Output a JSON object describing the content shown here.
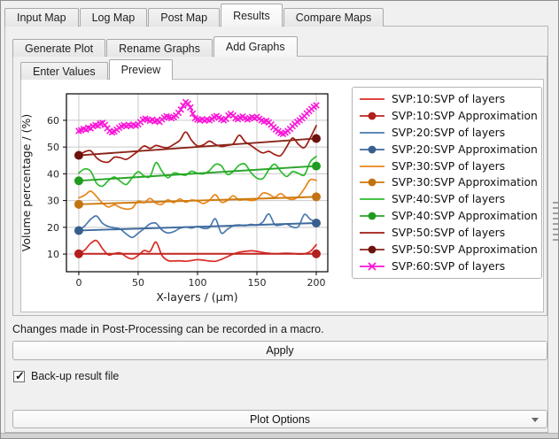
{
  "tabs_main": {
    "items": [
      "Input Map",
      "Log Map",
      "Post Map",
      "Results",
      "Compare Maps"
    ],
    "active": "Results"
  },
  "tabs_results": {
    "items": [
      "Generate Plot",
      "Rename Graphs",
      "Add Graphs"
    ],
    "active": "Add Graphs"
  },
  "tabs_addgraphs": {
    "items": [
      "Enter Values",
      "Preview"
    ],
    "active": "Preview"
  },
  "footer": {
    "note": "Changes made in Post-Processing can be recorded in a macro.",
    "apply_label": "Apply",
    "checkbox_label": "Back-up result file",
    "checkbox_checked": true,
    "plot_options_label": "Plot Options"
  },
  "chart_data": {
    "type": "line",
    "title": "",
    "xlabel": "X-layers / (µm)",
    "ylabel": "Volume percentage / (%)",
    "xlim": [
      -10.4,
      209.7
    ],
    "ylim": [
      3.4,
      69.9
    ],
    "xticks": [
      0,
      50,
      100,
      150,
      200
    ],
    "yticks": [
      10,
      20,
      30,
      40,
      50,
      60
    ],
    "grid": true,
    "grid_color": "#c9c9c9",
    "legend_position": "right",
    "series": [
      {
        "name": "SVP:10:SVP of layers",
        "color": "#dc2a25",
        "kind": "wavy",
        "x_start": 0,
        "x_step": 5,
        "values": [
          10.2,
          11.5,
          14.0,
          15.0,
          12.0,
          9.7,
          10.2,
          10.4,
          9.0,
          8.2,
          9.5,
          11.3,
          11.0,
          14.5,
          9.5,
          7.6,
          7.4,
          7.5,
          7.3,
          7.6,
          7.9,
          7.7,
          7.4,
          7.3,
          8.0,
          9.0,
          10.0,
          10.7,
          11.0,
          11.2,
          11.0,
          10.6,
          10.3,
          10.1,
          10.2,
          10.3,
          10.2,
          10.0,
          10.1,
          11.0,
          13.5
        ]
      },
      {
        "name": "SVP:10:SVP Approximation",
        "color": "#bf2420",
        "marker_color": "#b21f1c",
        "kind": "trend",
        "marker": "circle",
        "x": [
          0,
          200
        ],
        "values": [
          10.1,
          10.1
        ]
      },
      {
        "name": "SVP:20:SVP of layers",
        "color": "#4a79ad",
        "kind": "wavy",
        "x_start": 0,
        "x_step": 5,
        "values": [
          18.8,
          20.5,
          23.0,
          24.2,
          21.5,
          20.3,
          19.8,
          19.3,
          17.5,
          16.2,
          17.8,
          19.5,
          21.3,
          21.5,
          19.0,
          17.9,
          18.4,
          19.6,
          20.1,
          19.7,
          20.3,
          19.6,
          19.9,
          23.2,
          17.9,
          19.2,
          20.6,
          20.9,
          20.6,
          21.1,
          20.8,
          22.0,
          25.0,
          21.0,
          20.9,
          21.2,
          20.1,
          20.3,
          24.8,
          23.0,
          22.1
        ]
      },
      {
        "name": "SVP:20:SVP Approximation",
        "color": "#3e6a9d",
        "marker_color": "#375f8e",
        "kind": "trend",
        "marker": "circle",
        "x": [
          0,
          200
        ],
        "values": [
          18.8,
          21.6
        ]
      },
      {
        "name": "SVP:30:SVP of layers",
        "color": "#e8861a",
        "kind": "wavy",
        "x_start": 0,
        "x_step": 5,
        "values": [
          31.0,
          32.0,
          33.5,
          31.5,
          29.0,
          27.6,
          28.4,
          27.4,
          26.8,
          27.2,
          29.8,
          29.2,
          30.8,
          29.0,
          28.6,
          30.3,
          29.2,
          30.6,
          29.4,
          30.2,
          29.8,
          28.9,
          30.1,
          32.2,
          29.4,
          30.0,
          31.8,
          30.2,
          30.4,
          30.0,
          30.5,
          32.8,
          32.4,
          31.2,
          32.6,
          31.0,
          30.4,
          31.5,
          34.5,
          37.8,
          37.5
        ]
      },
      {
        "name": "SVP:30:SVP Approximation",
        "color": "#cf7a0e",
        "marker_color": "#c27310",
        "kind": "trend",
        "marker": "circle",
        "x": [
          0,
          200
        ],
        "values": [
          28.6,
          31.4
        ]
      },
      {
        "name": "SVP:40:SVP of layers",
        "color": "#2dbb2d",
        "kind": "wavy",
        "x_start": 0,
        "x_step": 5,
        "values": [
          40.3,
          41.8,
          41.0,
          36.5,
          35.4,
          37.5,
          38.8,
          37.2,
          36.0,
          38.5,
          40.8,
          39.2,
          39.0,
          44.2,
          41.0,
          38.5,
          40.3,
          39.9,
          39.5,
          41.0,
          40.2,
          40.0,
          41.2,
          43.5,
          43.0,
          39.8,
          40.8,
          43.2,
          43.6,
          40.5,
          38.4,
          38.2,
          41.5,
          43.6,
          41.0,
          39.0,
          40.8,
          40.2,
          39.6,
          44.5,
          46.5
        ]
      },
      {
        "name": "SVP:40:SVP Approximation",
        "color": "#27a527",
        "marker_color": "#1f9b1f",
        "kind": "trend",
        "marker": "circle",
        "x": [
          0,
          200
        ],
        "values": [
          37.4,
          42.9
        ]
      },
      {
        "name": "SVP:50:SVP of layers",
        "color": "#9e1c12",
        "kind": "wavy",
        "x_start": 0,
        "x_step": 5,
        "values": [
          46.9,
          48.2,
          48.6,
          46.0,
          44.6,
          44.4,
          46.2,
          46.0,
          45.4,
          46.8,
          48.5,
          50.4,
          49.5,
          50.6,
          50.0,
          49.8,
          51.0,
          52.5,
          55.6,
          52.5,
          50.4,
          50.8,
          52.2,
          51.0,
          50.2,
          50.6,
          51.2,
          54.4,
          52.0,
          50.6,
          49.0,
          47.8,
          48.4,
          47.2,
          46.8,
          50.0,
          53.4,
          51.0,
          49.8,
          53.5,
          58.0
        ]
      },
      {
        "name": "SVP:50:SVP Approximation",
        "color": "#8a251a",
        "marker_color": "#6e120e",
        "kind": "trend",
        "marker": "circle",
        "x": [
          0,
          200
        ],
        "values": [
          46.9,
          53.2
        ]
      },
      {
        "name": "SVP:60:SVP of layers",
        "color": "#fa17d7",
        "kind": "noisy",
        "marker": "x",
        "x_start": 0,
        "x_step": 2,
        "values": [
          56.0,
          56.3,
          56.8,
          56.5,
          57.2,
          57.0,
          57.8,
          58.2,
          58.0,
          58.8,
          59.0,
          58.3,
          57.0,
          56.0,
          55.5,
          55.8,
          56.5,
          57.2,
          57.8,
          58.2,
          57.8,
          58.3,
          57.9,
          58.4,
          58.0,
          58.5,
          59.3,
          60.2,
          60.6,
          60.3,
          59.8,
          60.2,
          59.6,
          59.9,
          59.4,
          60.3,
          61.0,
          61.5,
          61.2,
          60.8,
          61.2,
          61.8,
          62.8,
          64.0,
          65.5,
          66.8,
          66.2,
          64.8,
          62.5,
          60.8,
          60.3,
          60.0,
          60.4,
          59.9,
          60.3,
          60.0,
          60.5,
          61.2,
          61.6,
          61.0,
          60.4,
          60.0,
          60.5,
          61.8,
          62.4,
          61.8,
          60.8,
          60.4,
          61.0,
          61.4,
          60.8,
          60.3,
          60.7,
          61.2,
          60.8,
          61.3,
          60.6,
          60.0,
          59.5,
          59.8,
          59.2,
          58.4,
          57.4,
          56.6,
          55.9,
          55.2,
          54.9,
          55.4,
          56.0,
          56.8,
          57.8,
          58.6,
          59.4,
          60.0,
          60.8,
          61.6,
          62.6,
          63.4,
          64.2,
          65.0,
          65.6
        ]
      }
    ]
  }
}
